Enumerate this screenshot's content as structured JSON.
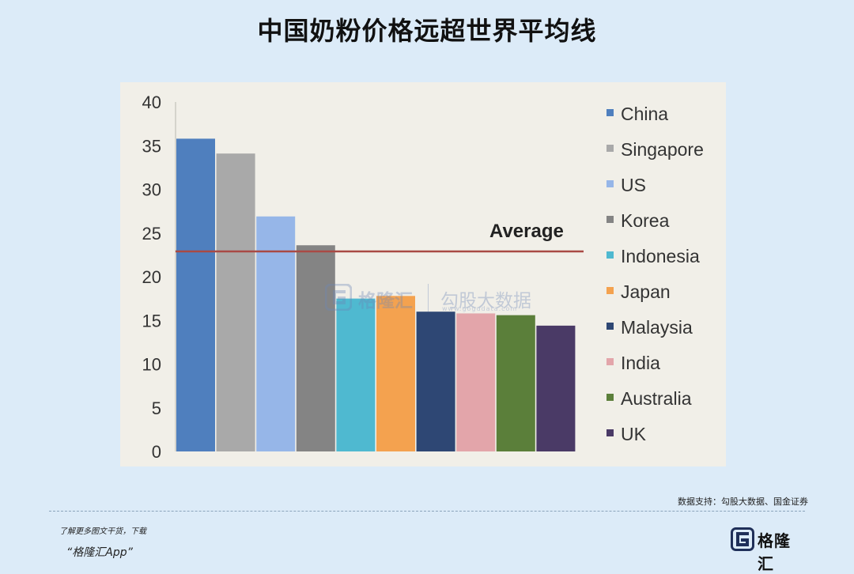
{
  "title": "中国奶粉价格远超世界平均线",
  "chart_data": {
    "type": "bar",
    "categories": [
      "China",
      "Singapore",
      "US",
      "Korea",
      "Indonesia",
      "Japan",
      "Malaysia",
      "India",
      "Australia",
      "UK"
    ],
    "values": [
      35.8,
      34.1,
      26.9,
      23.6,
      17.5,
      17.8,
      16.0,
      15.8,
      15.6,
      14.4
    ],
    "ylim": [
      0,
      40
    ],
    "yticks": [
      0,
      5,
      10,
      15,
      20,
      25,
      30,
      35,
      40
    ],
    "average_value": 22.9,
    "average_label": "Average",
    "legend": [
      {
        "label": "China",
        "color": "#4f7fbe"
      },
      {
        "label": "Singapore",
        "color": "#a9a9a9"
      },
      {
        "label": "US",
        "color": "#96b6e8"
      },
      {
        "label": "Korea",
        "color": "#848484"
      },
      {
        "label": "Indonesia",
        "color": "#4fb9d0"
      },
      {
        "label": "Japan",
        "color": "#f4a24f"
      },
      {
        "label": "Malaysia",
        "color": "#2e4774"
      },
      {
        "label": "India",
        "color": "#e3a5aa"
      },
      {
        "label": "Australia",
        "color": "#5b7f3a"
      },
      {
        "label": "UK",
        "color": "#4a3a66"
      }
    ],
    "grid": false,
    "legend_position": "right"
  },
  "source_text": "数据支持：勾股大数据、国金证券",
  "footer_text": "了解更多图文干货，下载",
  "footer_app": "“格隆汇App”",
  "brand_text": "格隆汇",
  "watermark": {
    "brand": "格隆汇",
    "title": "勾股大数据",
    "site": "www.gogudata.com"
  },
  "icons": {
    "brand": "g-logo-icon",
    "watermark": "g-logo-icon"
  }
}
